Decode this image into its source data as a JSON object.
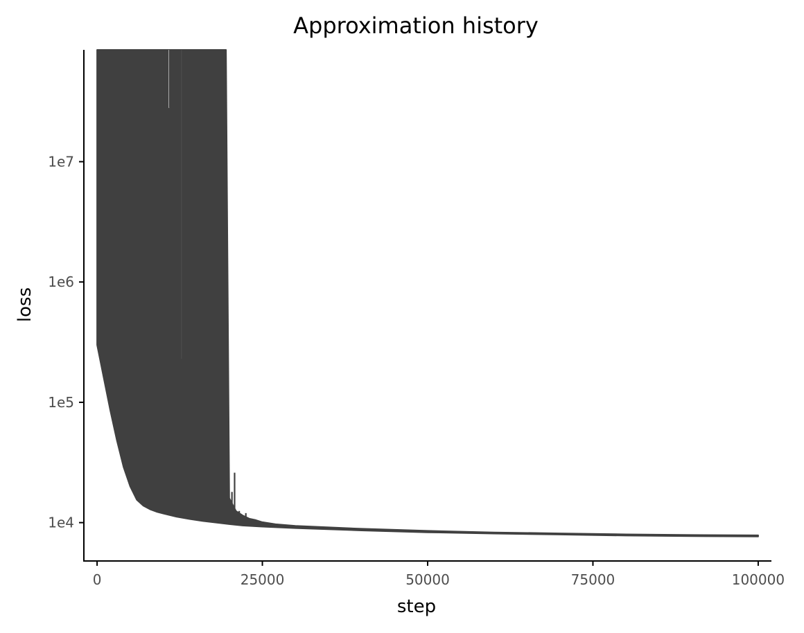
{
  "chart_data": {
    "type": "line",
    "title": "Approximation history",
    "xlabel": "step",
    "ylabel": "loss",
    "x_scale": "linear",
    "y_scale": "log10",
    "xlim": [
      -2000,
      102000
    ],
    "ylim": [
      4800,
      85000000
    ],
    "x_ticks": [
      {
        "value": 0,
        "label": "0"
      },
      {
        "value": 25000,
        "label": "25000"
      },
      {
        "value": 50000,
        "label": "50000"
      },
      {
        "value": 75000,
        "label": "75000"
      },
      {
        "value": 100000,
        "label": "100000"
      }
    ],
    "y_ticks": [
      {
        "value": 10000,
        "label": "1e4"
      },
      {
        "value": 100000,
        "label": "1e5"
      },
      {
        "value": 1000000,
        "label": "1e6"
      },
      {
        "value": 10000000,
        "label": "1e7"
      }
    ],
    "grid": false,
    "legend": "none",
    "series": [
      {
        "color": "#404040",
        "lower_envelope": {
          "x": [
            0,
            1000,
            2000,
            3000,
            4000,
            5000,
            6000,
            7000,
            8000,
            9000,
            10000,
            12000,
            14000,
            16000,
            18000,
            20000,
            22000,
            25000,
            30000,
            40000,
            50000,
            60000,
            70000,
            80000,
            90000,
            100000
          ],
          "y": [
            300000,
            160000,
            85000,
            48000,
            29000,
            20000,
            15500,
            13800,
            12900,
            12300,
            11900,
            11200,
            10700,
            10300,
            10000,
            9700,
            9450,
            9250,
            9000,
            8600,
            8300,
            8100,
            7950,
            7800,
            7700,
            7650
          ]
        },
        "upper_envelope": {
          "x": [
            0,
            1000,
            2000,
            3000,
            4000,
            5000,
            6000,
            7000,
            8000,
            9000,
            10000,
            12000,
            14000,
            16000,
            18000,
            19500,
            20000,
            21000,
            22000,
            23000,
            24000,
            25000,
            27000,
            30000,
            40000,
            50000,
            60000,
            70000,
            80000,
            90000,
            100000
          ],
          "y": [
            85000000,
            85000000,
            85000000,
            85000000,
            85000000,
            85000000,
            85000000,
            85000000,
            85000000,
            85000000,
            85000000,
            85000000,
            85000000,
            85000000,
            85000000,
            85000000,
            16000,
            12500,
            11500,
            10800,
            10500,
            10100,
            9700,
            9400,
            8900,
            8550,
            8300,
            8150,
            8000,
            7900,
            7850
          ]
        },
        "spikes": [
          {
            "x": 11000,
            "low": 28000000,
            "high": 85000000
          },
          {
            "x": 12900,
            "low": 220000,
            "high": 85000000
          },
          {
            "x": 16000,
            "low": 30000,
            "high": 950000
          },
          {
            "x": 16400,
            "low": 28000,
            "high": 420000
          },
          {
            "x": 16900,
            "low": 17000,
            "high": 30000
          },
          {
            "x": 17300,
            "low": 16000,
            "high": 300000
          },
          {
            "x": 17600,
            "low": 15000,
            "high": 85000000
          },
          {
            "x": 18000,
            "low": 14000,
            "high": 85000000
          },
          {
            "x": 18500,
            "low": 13500,
            "high": 85000000
          },
          {
            "x": 19000,
            "low": 13000,
            "high": 85000000
          },
          {
            "x": 19400,
            "low": 13500,
            "high": 600000
          },
          {
            "x": 19900,
            "low": 12500,
            "high": 52000
          },
          {
            "x": 20400,
            "low": 12000,
            "high": 18000
          },
          {
            "x": 20800,
            "low": 11500,
            "high": 26000
          },
          {
            "x": 21500,
            "low": 11000,
            "high": 12500
          },
          {
            "x": 22500,
            "low": 10800,
            "high": 12000
          }
        ]
      }
    ]
  }
}
